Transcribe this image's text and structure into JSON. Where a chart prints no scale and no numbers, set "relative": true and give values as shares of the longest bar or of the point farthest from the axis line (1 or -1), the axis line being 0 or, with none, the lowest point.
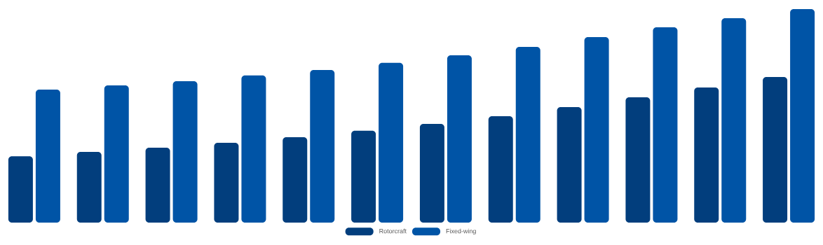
{
  "chart_data": {
    "type": "bar",
    "relative": true,
    "legend": "bottom",
    "categories": [
      null,
      null,
      null,
      null,
      null,
      null,
      null,
      null,
      null,
      null,
      null,
      null
    ],
    "series": [
      {
        "name": "Rotorcraft",
        "color": "#023e7d",
        "values": [
          0.311,
          0.331,
          0.351,
          0.374,
          0.4,
          0.43,
          0.462,
          0.498,
          0.541,
          0.587,
          0.633,
          0.682
        ]
      },
      {
        "name": "Fixed-wing",
        "color": "#0054a6",
        "values": [
          0.623,
          0.643,
          0.662,
          0.689,
          0.715,
          0.748,
          0.784,
          0.823,
          0.869,
          0.915,
          0.957,
          1
        ]
      }
    ]
  }
}
